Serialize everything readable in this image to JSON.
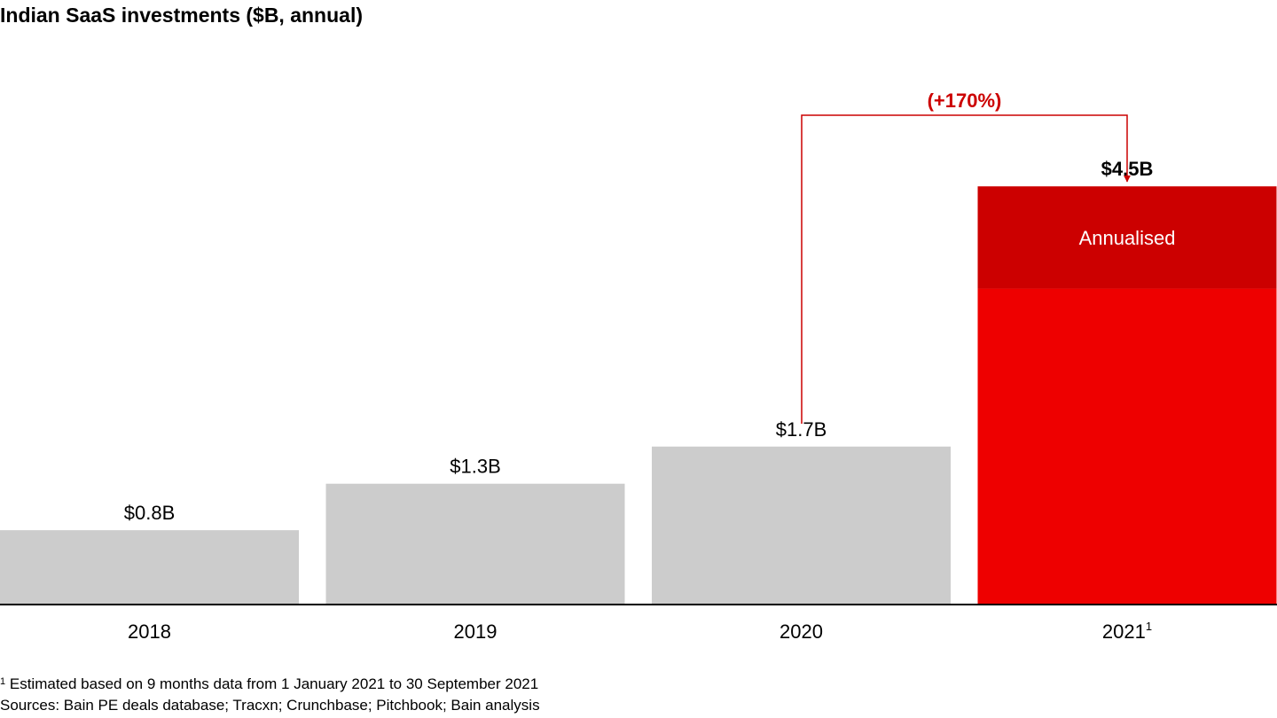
{
  "colors": {
    "historical": "#cccccc",
    "actual_2021": "#ee0000",
    "annualised": "#cc0000",
    "arrow": "#cc0000",
    "growth_label": "#cc0000",
    "axis": "#000000"
  },
  "chart_data": {
    "type": "bar",
    "title": "Indian SaaS investments ($B, annual)",
    "categories": [
      "2018",
      "2019",
      "2020",
      "2021"
    ],
    "category_superscripts": [
      "",
      "",
      "",
      "1"
    ],
    "values": [
      0.8,
      1.3,
      1.7,
      4.5
    ],
    "value_labels": [
      "$0.8B",
      "$1.3B",
      "$1.7B",
      "$4.5B"
    ],
    "stack_2021": {
      "actual": 3.4,
      "annualised": 1.1,
      "annualised_label": "Annualised"
    },
    "growth_annotation": {
      "from": "2020",
      "to": "2021",
      "label": "(+170%)"
    },
    "ylim": [
      0,
      6.2
    ],
    "grid": false,
    "legend": "none"
  },
  "footnotes": {
    "note_marker": "1",
    "note_text": "Estimated based on 9 months data from 1 January 2021 to 30 September 2021",
    "sources": "Sources: Bain PE deals database; Tracxn; Crunchbase; Pitchbook; Bain analysis"
  }
}
